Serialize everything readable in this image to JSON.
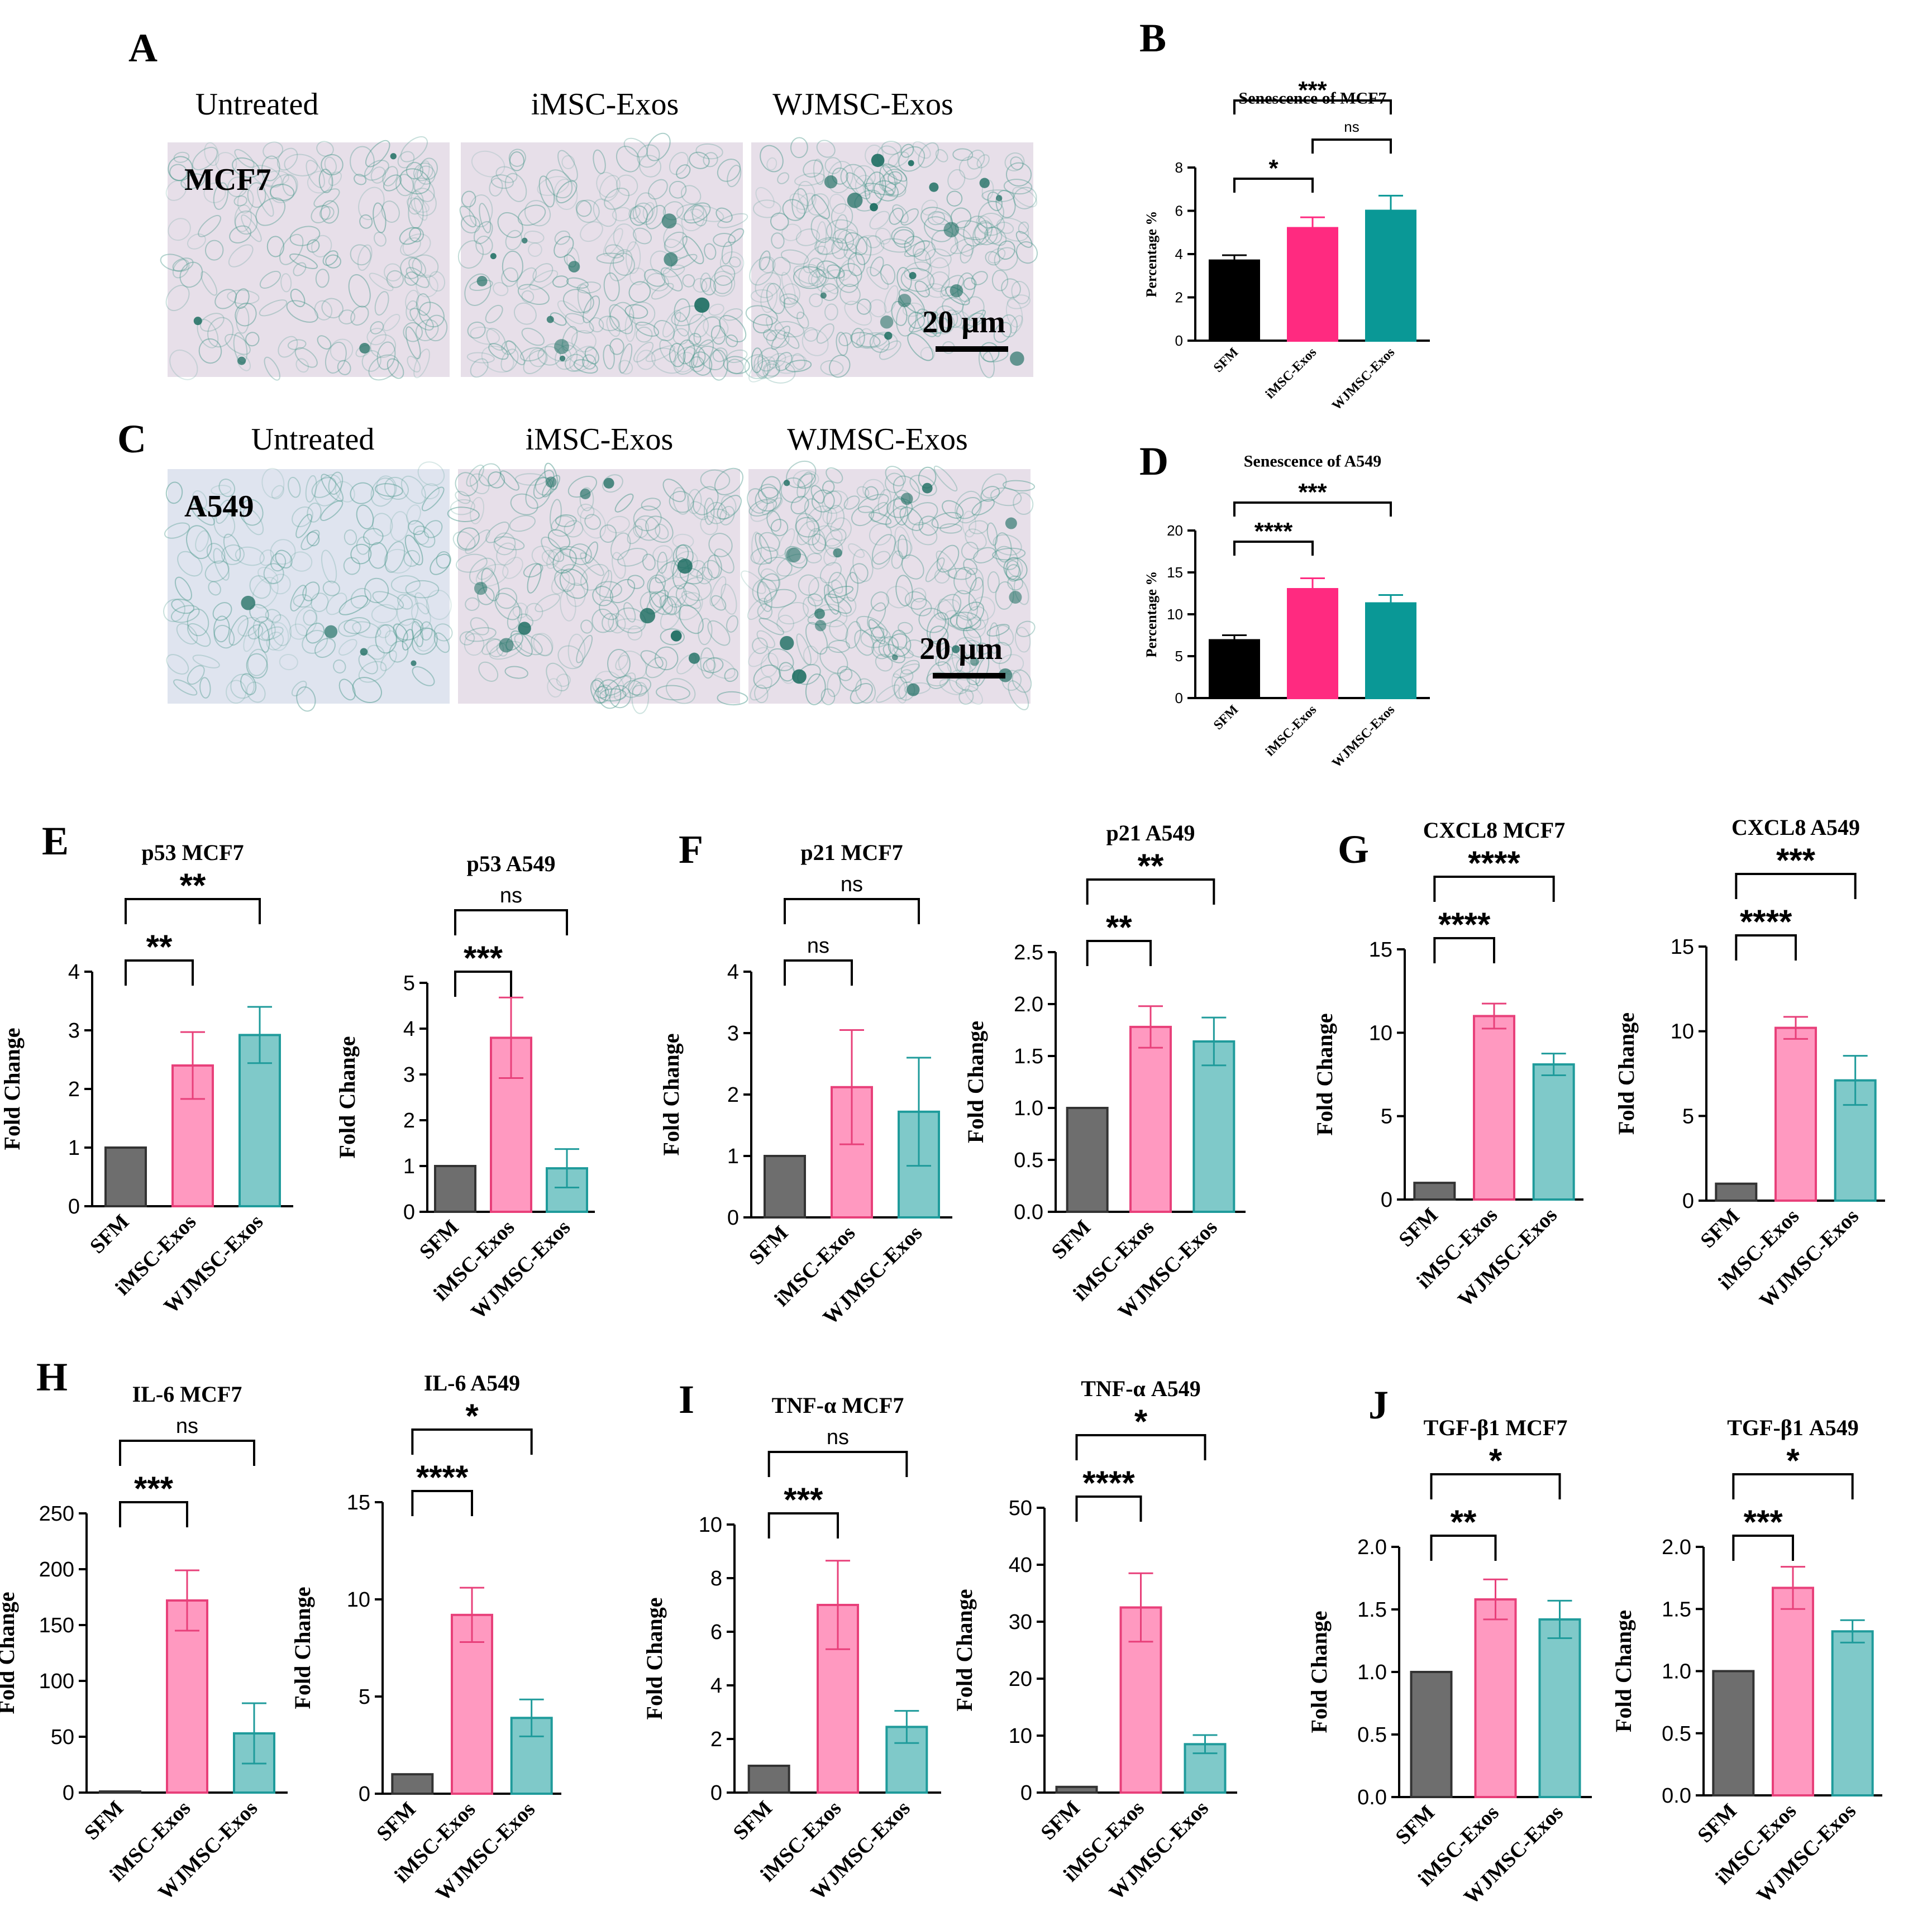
{
  "figure": {
    "panel_letters": [
      "A",
      "B",
      "C",
      "D",
      "E",
      "F",
      "G",
      "H",
      "I",
      "J"
    ],
    "microscopy": {
      "columns": [
        "Untreated",
        "iMSC-Exos",
        "WJMSC-Exos"
      ],
      "rows": [
        {
          "cell_line": "MCF7",
          "scale_bar": "20 µm"
        },
        {
          "cell_line": "A549",
          "scale_bar": "20 µm"
        }
      ]
    },
    "colors": {
      "black": "#000000",
      "hot_pink": "#ff2a80",
      "teal": "#0a9896",
      "gray_bar": "#6e6e6e",
      "pink_bar": "#ff99c0",
      "pink_edge": "#e8407a",
      "teal_bar": "#7fc9c9",
      "teal_edge": "#1f9b9b",
      "micro_bg": "#e7dfe9",
      "micro_bg_blue": "#dfe4ef",
      "cell_stain": "#4f9a8e"
    }
  },
  "chart_data": [
    {
      "id": "B",
      "type": "bar",
      "title": "Senescence of MCF7",
      "ylabel": "Percentage %",
      "categories": [
        "SFM",
        "iMSC-Exos",
        "WJMSC-Exos"
      ],
      "values": [
        3.7,
        5.2,
        6.0
      ],
      "errors": [
        0.25,
        0.5,
        0.7
      ],
      "ylim": [
        0,
        8
      ],
      "yticks": [
        "0",
        "2",
        "4",
        "6",
        "8"
      ],
      "significance": [
        {
          "from": 0,
          "to": 1,
          "label": "*"
        },
        {
          "from": 1,
          "to": 2,
          "label": "ns"
        },
        {
          "from": 0,
          "to": 2,
          "label": "***"
        }
      ]
    },
    {
      "id": "D",
      "type": "bar",
      "title": "Senescence of A549",
      "ylabel": "Percentage %",
      "categories": [
        "SFM",
        "iMSC-Exos",
        "WJMSC-Exos"
      ],
      "values": [
        6.9,
        13.0,
        11.3
      ],
      "errors": [
        0.6,
        1.3,
        1.0
      ],
      "ylim": [
        0,
        20
      ],
      "yticks": [
        "0",
        "5",
        "10",
        "15",
        "20"
      ],
      "significance": [
        {
          "from": 0,
          "to": 1,
          "label": "****"
        },
        {
          "from": 0,
          "to": 2,
          "label": "***"
        }
      ]
    },
    {
      "id": "E1",
      "type": "bar",
      "title": "p53 MCF7",
      "ylabel": "Fold Change",
      "categories": [
        "SFM",
        "iMSC-Exos",
        "WJMSC-Exos"
      ],
      "values": [
        1.0,
        2.4,
        2.92
      ],
      "errors": [
        0,
        0.57,
        0.48
      ],
      "ylim": [
        0,
        4
      ],
      "yticks": [
        "0",
        "1",
        "2",
        "3",
        "4"
      ],
      "significance": [
        {
          "from": 0,
          "to": 1,
          "label": "**"
        },
        {
          "from": 0,
          "to": 2,
          "label": "**"
        }
      ]
    },
    {
      "id": "E2",
      "type": "bar",
      "title": "p53 A549",
      "ylabel": "Fold Change",
      "categories": [
        "SFM",
        "iMSC-Exos",
        "WJMSC-Exos"
      ],
      "values": [
        1.0,
        3.8,
        0.95
      ],
      "errors": [
        0,
        0.88,
        0.42
      ],
      "ylim": [
        0,
        5
      ],
      "yticks": [
        "0",
        "1",
        "2",
        "3",
        "4",
        "5"
      ],
      "significance": [
        {
          "from": 0,
          "to": 1,
          "label": "***"
        },
        {
          "from": 0,
          "to": 2,
          "label": "ns"
        }
      ]
    },
    {
      "id": "F1",
      "type": "bar",
      "title": "p21 MCF7",
      "ylabel": "Fold Change",
      "categories": [
        "SFM",
        "iMSC-Exos",
        "WJMSC-Exos"
      ],
      "values": [
        1.0,
        2.12,
        1.72
      ],
      "errors": [
        0,
        0.93,
        0.88
      ],
      "ylim": [
        0,
        4
      ],
      "yticks": [
        "0",
        "1",
        "2",
        "3",
        "4"
      ],
      "significance": [
        {
          "from": 0,
          "to": 1,
          "label": "ns"
        },
        {
          "from": 0,
          "to": 2,
          "label": "ns"
        }
      ]
    },
    {
      "id": "F2",
      "type": "bar",
      "title": "p21 A549",
      "ylabel": "Fold Change",
      "categories": [
        "SFM",
        "iMSC-Exos",
        "WJMSC-Exos"
      ],
      "values": [
        1.0,
        1.78,
        1.64
      ],
      "errors": [
        0,
        0.2,
        0.23
      ],
      "ylim": [
        0,
        2.5
      ],
      "yticks": [
        "0.0",
        "0.5",
        "1.0",
        "1.5",
        "2.0",
        "2.5"
      ],
      "significance": [
        {
          "from": 0,
          "to": 1,
          "label": "**"
        },
        {
          "from": 0,
          "to": 2,
          "label": "**"
        }
      ]
    },
    {
      "id": "G1",
      "type": "bar",
      "title": "CXCL8 MCF7",
      "ylabel": "Fold Change",
      "categories": [
        "SFM",
        "iMSC-Exos",
        "WJMSC-Exos"
      ],
      "values": [
        1.0,
        11.0,
        8.1
      ],
      "errors": [
        0,
        0.75,
        0.65
      ],
      "ylim": [
        0,
        15
      ],
      "yticks": [
        "0",
        "5",
        "10",
        "15"
      ],
      "significance": [
        {
          "from": 0,
          "to": 1,
          "label": "****"
        },
        {
          "from": 0,
          "to": 2,
          "label": "****"
        }
      ]
    },
    {
      "id": "G2",
      "type": "bar",
      "title": "CXCL8 A549",
      "ylabel": "Fold Change",
      "categories": [
        "SFM",
        "iMSC-Exos",
        "WJMSC-Exos"
      ],
      "values": [
        1.0,
        10.2,
        7.1
      ],
      "errors": [
        0,
        0.65,
        1.45
      ],
      "ylim": [
        0,
        15
      ],
      "yticks": [
        "0",
        "5",
        "10",
        "15"
      ],
      "significance": [
        {
          "from": 0,
          "to": 1,
          "label": "****"
        },
        {
          "from": 0,
          "to": 2,
          "label": "***"
        }
      ]
    },
    {
      "id": "H1",
      "type": "bar",
      "title": "IL-6 MCF7",
      "ylabel": "Fold Change",
      "categories": [
        "SFM",
        "iMSC-Exos",
        "WJMSC-Exos"
      ],
      "values": [
        1.0,
        172,
        53
      ],
      "errors": [
        0,
        27,
        27
      ],
      "ylim": [
        0,
        250
      ],
      "yticks": [
        "0",
        "50",
        "100",
        "150",
        "200",
        "250"
      ],
      "significance": [
        {
          "from": 0,
          "to": 1,
          "label": "***"
        },
        {
          "from": 0,
          "to": 2,
          "label": "ns"
        }
      ]
    },
    {
      "id": "H2",
      "type": "bar",
      "title": "IL-6 A549",
      "ylabel": "Fold Change",
      "categories": [
        "SFM",
        "iMSC-Exos",
        "WJMSC-Exos"
      ],
      "values": [
        1.0,
        9.2,
        3.9
      ],
      "errors": [
        0,
        1.4,
        0.95
      ],
      "ylim": [
        0,
        15
      ],
      "yticks": [
        "0",
        "5",
        "10",
        "15"
      ],
      "significance": [
        {
          "from": 0,
          "to": 1,
          "label": "****"
        },
        {
          "from": 0,
          "to": 2,
          "label": "*"
        }
      ]
    },
    {
      "id": "I1",
      "type": "bar",
      "title": "TNF-α MCF7",
      "ylabel": "Fold Change",
      "categories": [
        "SFM",
        "iMSC-Exos",
        "WJMSC-Exos"
      ],
      "values": [
        1.0,
        7.0,
        2.45
      ],
      "errors": [
        0,
        1.65,
        0.6
      ],
      "ylim": [
        0,
        10
      ],
      "yticks": [
        "0",
        "2",
        "4",
        "6",
        "8",
        "10"
      ],
      "significance": [
        {
          "from": 0,
          "to": 1,
          "label": "***"
        },
        {
          "from": 0,
          "to": 2,
          "label": "ns"
        }
      ]
    },
    {
      "id": "I2",
      "type": "bar",
      "title": "TNF-α A549",
      "ylabel": "Fold Change",
      "categories": [
        "SFM",
        "iMSC-Exos",
        "WJMSC-Exos"
      ],
      "values": [
        1.0,
        32.5,
        8.5
      ],
      "errors": [
        0,
        6,
        1.6
      ],
      "ylim": [
        0,
        50
      ],
      "yticks": [
        "0",
        "10",
        "20",
        "30",
        "40",
        "50"
      ],
      "significance": [
        {
          "from": 0,
          "to": 1,
          "label": "****"
        },
        {
          "from": 0,
          "to": 2,
          "label": "*"
        }
      ]
    },
    {
      "id": "J1",
      "type": "bar",
      "title": "TGF-β1 MCF7",
      "ylabel": "Fold Change",
      "categories": [
        "SFM",
        "iMSC-Exos",
        "WJMSC-Exos"
      ],
      "values": [
        1.0,
        1.58,
        1.42
      ],
      "errors": [
        0,
        0.16,
        0.15
      ],
      "ylim": [
        0,
        2.0
      ],
      "yticks": [
        "0.0",
        "0.5",
        "1.0",
        "1.5",
        "2.0"
      ],
      "significance": [
        {
          "from": 0,
          "to": 1,
          "label": "**"
        },
        {
          "from": 0,
          "to": 2,
          "label": "*"
        }
      ]
    },
    {
      "id": "J2",
      "type": "bar",
      "title": "TGF-β1 A549",
      "ylabel": "Fold Change",
      "categories": [
        "SFM",
        "iMSC-Exos",
        "WJMSC-Exos"
      ],
      "values": [
        1.0,
        1.67,
        1.32
      ],
      "errors": [
        0,
        0.17,
        0.09
      ],
      "ylim": [
        0,
        2.0
      ],
      "yticks": [
        "0.0",
        "0.5",
        "1.0",
        "1.5",
        "2.0"
      ],
      "significance": [
        {
          "from": 0,
          "to": 1,
          "label": "***"
        },
        {
          "from": 0,
          "to": 2,
          "label": "*"
        }
      ]
    }
  ]
}
